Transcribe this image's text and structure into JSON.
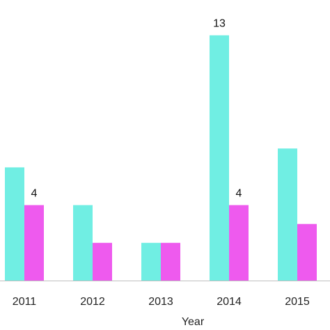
{
  "chart_data": {
    "type": "bar",
    "title": "",
    "xlabel": "Year",
    "ylabel": "",
    "categories": [
      "2011",
      "2012",
      "2013",
      "2014",
      "2015"
    ],
    "series": [
      {
        "values": [
          6,
          4,
          2,
          13,
          7
        ],
        "color": "#70EEE3"
      },
      {
        "values": [
          4,
          2,
          2,
          4,
          3
        ],
        "color": "#EE5AEE"
      }
    ],
    "data_labels": [
      {
        "category": "2011",
        "series_index": 1,
        "value": 4,
        "text": "4"
      },
      {
        "category": "2014",
        "series_index": 0,
        "value": 13,
        "text": "13"
      },
      {
        "category": "2014",
        "series_index": 1,
        "value": 4,
        "text": "4"
      }
    ],
    "ylim": [
      0,
      14
    ],
    "grid": false,
    "legend": "none"
  }
}
